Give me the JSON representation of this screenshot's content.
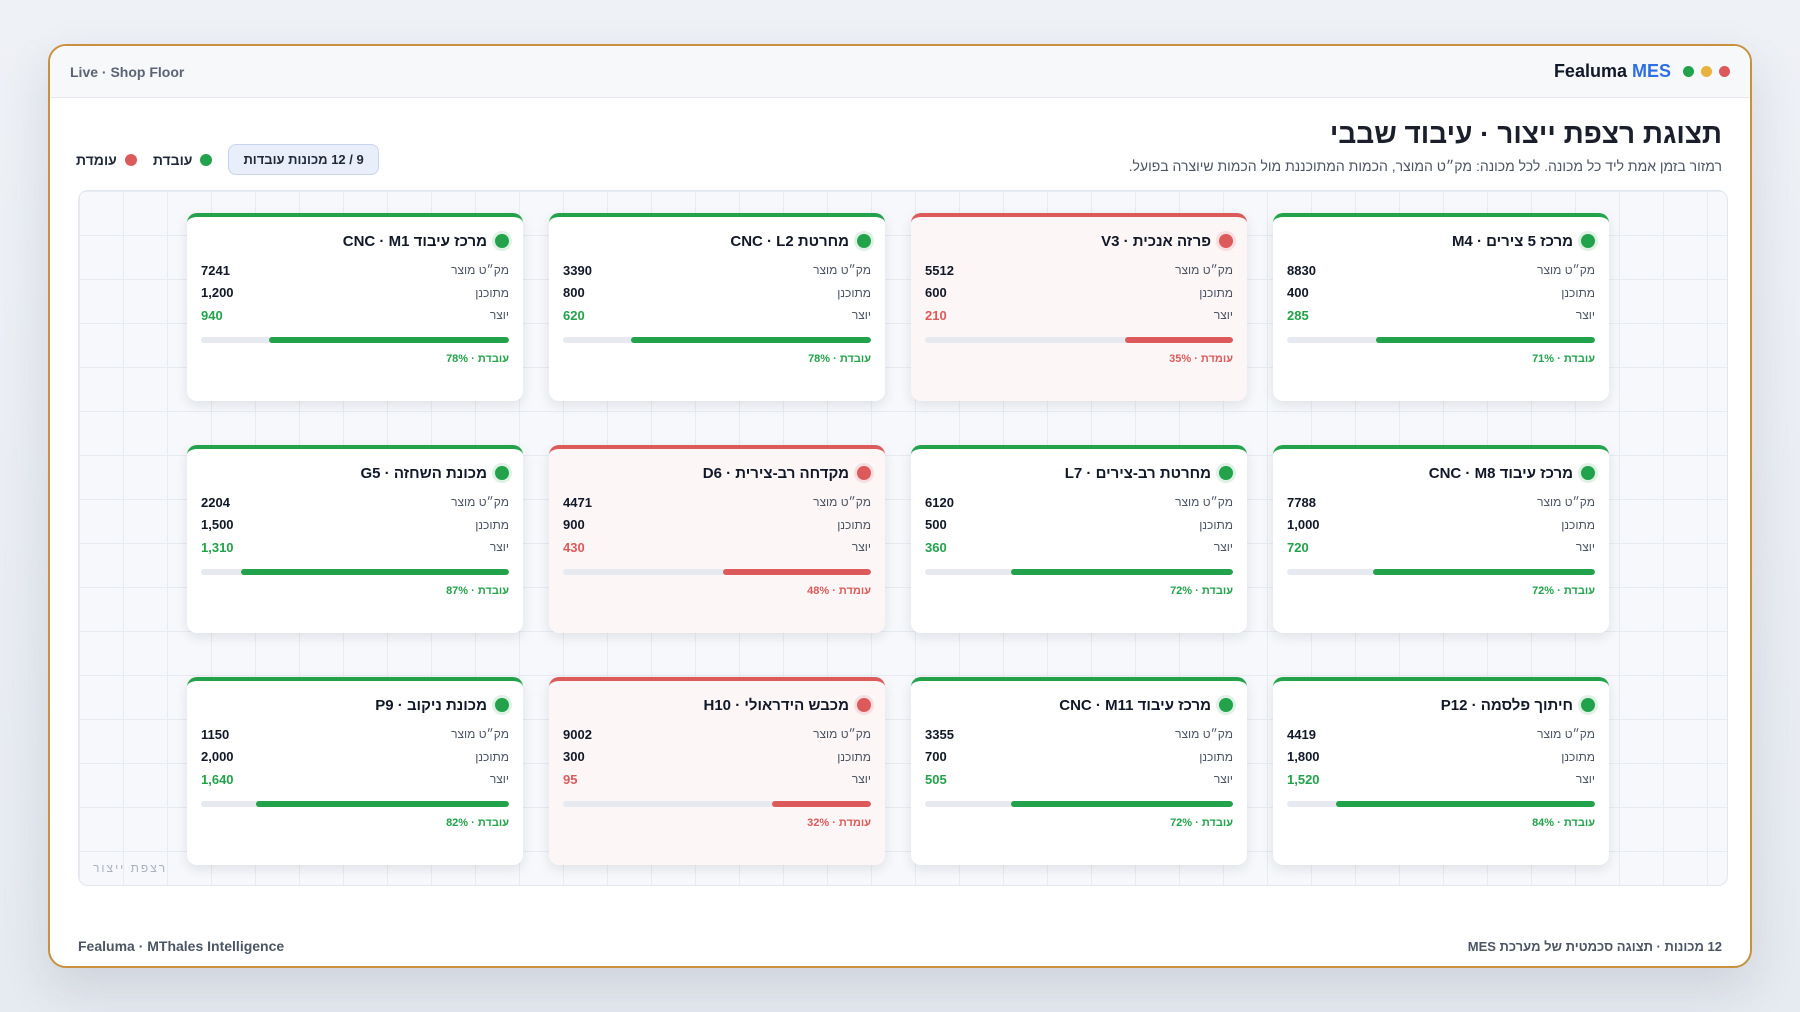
{
  "titlebar": {
    "left_label": "Live · Shop Floor",
    "brand_main": "Fealuma",
    "brand_accent": "MES"
  },
  "colors": {
    "running": "#22a24a",
    "stopped": "#dc5a5a",
    "accent": "#2f6fe4",
    "window_border": "#c9913e"
  },
  "header": {
    "title": "תצוגת רצפת ייצור · עיבוד שבבי",
    "subtitle": "רמזור בזמן אמת ליד כל מכונה. לכל מכונה: מק״ט המוצר, הכמות המתוכננת מול הכמות שיוצרה בפועל.",
    "count_pill": "9 / 12 מכונות עובדות",
    "legend_running": "עובדת",
    "legend_stopped": "עומדת"
  },
  "labels": {
    "sku": "מק״ט מוצר",
    "planned": "מתוכנן",
    "produced": "יוצר"
  },
  "floor_label": "רצפת ייצור",
  "machines": [
    {
      "name": "מרכז 5 צירים · M4",
      "sku": "8830",
      "planned": "400",
      "produced": "285",
      "progress": 71,
      "status": "running",
      "status_text": "עובדת · 71%"
    },
    {
      "name": "פרזה אנכית · V3",
      "sku": "5512",
      "planned": "600",
      "produced": "210",
      "progress": 35,
      "status": "stopped",
      "status_text": "עומדת · 35%"
    },
    {
      "name": "מחרטת CNC · L2",
      "sku": "3390",
      "planned": "800",
      "produced": "620",
      "progress": 78,
      "status": "running",
      "status_text": "עובדת · 78%"
    },
    {
      "name": "מרכז עיבוד CNC · M1",
      "sku": "7241",
      "planned": "1,200",
      "produced": "940",
      "progress": 78,
      "status": "running",
      "status_text": "עובדת · 78%"
    },
    {
      "name": "מרכז עיבוד CNC · M8",
      "sku": "7788",
      "planned": "1,000",
      "produced": "720",
      "progress": 72,
      "status": "running",
      "status_text": "עובדת · 72%"
    },
    {
      "name": "מחרטת רב-צירים · L7",
      "sku": "6120",
      "planned": "500",
      "produced": "360",
      "progress": 72,
      "status": "running",
      "status_text": "עובדת · 72%"
    },
    {
      "name": "מקדחה רב-צירית · D6",
      "sku": "4471",
      "planned": "900",
      "produced": "430",
      "progress": 48,
      "status": "stopped",
      "status_text": "עומדת · 48%"
    },
    {
      "name": "מכונת השחזה · G5",
      "sku": "2204",
      "planned": "1,500",
      "produced": "1,310",
      "progress": 87,
      "status": "running",
      "status_text": "עובדת · 87%"
    },
    {
      "name": "חיתוך פלסמה · P12",
      "sku": "4419",
      "planned": "1,800",
      "produced": "1,520",
      "progress": 84,
      "status": "running",
      "status_text": "עובדת · 84%"
    },
    {
      "name": "מרכז עיבוד CNC · M11",
      "sku": "3355",
      "planned": "700",
      "produced": "505",
      "progress": 72,
      "status": "running",
      "status_text": "עובדת · 72%"
    },
    {
      "name": "מכבש הידראולי · H10",
      "sku": "9002",
      "planned": "300",
      "produced": "95",
      "progress": 32,
      "status": "stopped",
      "status_text": "עומדת · 32%"
    },
    {
      "name": "מכונת ניקוב · P9",
      "sku": "1150",
      "planned": "2,000",
      "produced": "1,640",
      "progress": 82,
      "status": "running",
      "status_text": "עובדת · 82%"
    }
  ],
  "footer": {
    "left": "Fealuma · MThales Intelligence",
    "right": "12 מכונות · תצוגה סכמטית של מערכת MES"
  }
}
